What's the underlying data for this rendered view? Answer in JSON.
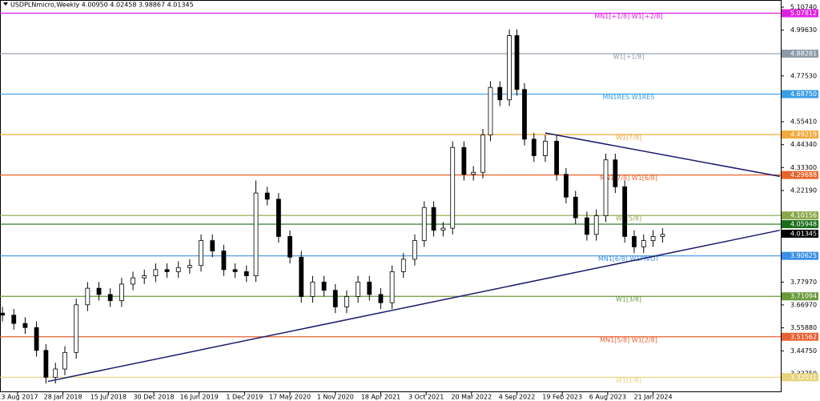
{
  "chart_data": {
    "type": "candlestick",
    "title": "USDPLNmicro,Weekly  4.00950 4.02458 3.98867 4.01345",
    "x": [
      -8,
      -2,
      4,
      10,
      15,
      20,
      25,
      31,
      37,
      43,
      49,
      55,
      61,
      67,
      73,
      79,
      85,
      91,
      97,
      103,
      109,
      115,
      121,
      126,
      132,
      138,
      144,
      150,
      156,
      162,
      168,
      174,
      180,
      186,
      192,
      198,
      204,
      210,
      215,
      220,
      225,
      230,
      236,
      241,
      246,
      250,
      255,
      260,
      264,
      268,
      273,
      279,
      285,
      290,
      295,
      301,
      306,
      311,
      316,
      321,
      326,
      331,
      336,
      341
    ],
    "open": [
      3.63,
      3.62,
      3.58,
      3.56,
      3.45,
      3.32,
      3.36,
      3.44,
      3.67,
      3.75,
      3.72,
      3.69,
      3.77,
      3.8,
      3.81,
      3.84,
      3.83,
      3.85,
      3.86,
      3.98,
      3.93,
      3.84,
      3.83,
      3.81,
      4.21,
      4.18,
      4.0,
      3.9,
      3.71,
      3.78,
      3.74,
      3.66,
      3.71,
      3.78,
      3.72,
      3.68,
      3.83,
      3.89,
      3.98,
      4.14,
      4.03,
      4.04,
      4.43,
      4.3,
      4.31,
      4.49,
      4.72,
      4.66,
      4.97,
      4.71,
      4.47,
      4.39,
      4.46,
      4.3,
      4.19,
      4.09,
      4.01,
      4.1,
      4.37,
      4.24,
      4.0,
      3.95,
      3.98,
      4.0
    ],
    "high": [
      3.66,
      3.65,
      3.61,
      3.59,
      3.48,
      3.39,
      3.47,
      3.7,
      3.78,
      3.78,
      3.75,
      3.8,
      3.83,
      3.84,
      3.87,
      3.87,
      3.88,
      3.89,
      4.01,
      4.01,
      3.96,
      3.87,
      3.86,
      4.27,
      4.24,
      4.21,
      4.03,
      3.93,
      3.81,
      3.81,
      3.77,
      3.74,
      3.81,
      3.81,
      3.75,
      3.86,
      3.92,
      4.01,
      4.17,
      4.17,
      4.07,
      4.46,
      4.46,
      4.34,
      4.52,
      4.75,
      4.75,
      5.0,
      5.0,
      4.74,
      4.5,
      4.49,
      4.49,
      4.33,
      4.22,
      4.12,
      4.13,
      4.4,
      4.4,
      4.27,
      4.03,
      4.01,
      4.03,
      4.04
    ],
    "low": [
      3.59,
      3.55,
      3.53,
      3.42,
      3.29,
      3.29,
      3.33,
      3.41,
      3.64,
      3.69,
      3.66,
      3.66,
      3.74,
      3.77,
      3.78,
      3.8,
      3.8,
      3.82,
      3.83,
      3.9,
      3.81,
      3.8,
      3.78,
      3.78,
      4.15,
      3.97,
      3.87,
      3.68,
      3.68,
      3.71,
      3.63,
      3.63,
      3.68,
      3.69,
      3.65,
      3.65,
      3.8,
      3.86,
      3.95,
      4.0,
      4.0,
      4.01,
      4.27,
      4.27,
      4.28,
      4.46,
      4.63,
      4.63,
      4.68,
      4.44,
      4.36,
      4.36,
      4.27,
      4.16,
      4.06,
      3.98,
      3.98,
      4.07,
      4.21,
      3.97,
      3.92,
      3.92,
      3.95,
      3.97
    ],
    "close": [
      3.62,
      3.58,
      3.56,
      3.45,
      3.32,
      3.36,
      3.44,
      3.67,
      3.75,
      3.72,
      3.69,
      3.77,
      3.8,
      3.81,
      3.84,
      3.83,
      3.85,
      3.86,
      3.98,
      3.93,
      3.84,
      3.83,
      3.81,
      4.21,
      4.18,
      4.0,
      3.9,
      3.71,
      3.78,
      3.74,
      3.66,
      3.71,
      3.78,
      3.72,
      3.68,
      3.83,
      3.89,
      3.98,
      4.14,
      4.03,
      4.04,
      4.43,
      4.3,
      4.31,
      4.49,
      4.72,
      4.66,
      4.97,
      4.71,
      4.47,
      4.39,
      4.46,
      4.3,
      4.19,
      4.09,
      4.01,
      4.1,
      4.37,
      4.24,
      4.0,
      3.95,
      3.98,
      4.0,
      4.01
    ],
    "xlim": [
      -9.3,
      403.5
    ],
    "ylim": [
      3.248,
      5.142
    ],
    "xticks": [
      {
        "value": 0,
        "label": "13 Aug 2017"
      },
      {
        "value": 24,
        "label": "28 Jan 2018"
      },
      {
        "value": 48,
        "label": "15 Jul 2018"
      },
      {
        "value": 72,
        "label": "30 Dec 2018"
      },
      {
        "value": 96,
        "label": "16 Jun 2019"
      },
      {
        "value": 120,
        "label": "1 Dec 2019"
      },
      {
        "value": 144,
        "label": "17 May 2020"
      },
      {
        "value": 168,
        "label": "1 Nov 2020"
      },
      {
        "value": 192,
        "label": "18 Apr 2021"
      },
      {
        "value": 216,
        "label": "3 Oct 2021"
      },
      {
        "value": 240,
        "label": "20 Mar 2022"
      },
      {
        "value": 264,
        "label": "4 Sep 2022"
      },
      {
        "value": 288,
        "label": "19 Feb 2023"
      },
      {
        "value": 312,
        "label": "6 Aug 2023"
      },
      {
        "value": 336,
        "label": "21 Jan 2024"
      }
    ],
    "yticks": [
      {
        "value": 5.1074,
        "label": "5.10740"
      },
      {
        "value": 4.9963,
        "label": "4.99630"
      },
      {
        "value": 4.7753,
        "label": "4.77530"
      },
      {
        "value": 4.5541,
        "label": "4.55410"
      },
      {
        "value": 4.4434,
        "label": "4.44340"
      },
      {
        "value": 4.333,
        "label": "4.33300"
      },
      {
        "value": 4.2219,
        "label": "4.22190"
      },
      {
        "value": 3.7797,
        "label": "3.77970"
      },
      {
        "value": 3.6697,
        "label": "3.66970"
      },
      {
        "value": 3.5588,
        "label": "3.55880"
      },
      {
        "value": 3.4475,
        "label": "3.44750"
      },
      {
        "value": 3.3375,
        "label": "3.33750"
      }
    ],
    "levels": [
      {
        "label": "MN1[+1/8] W1[+2/8]",
        "price": 5.07812,
        "tag": "5.07812",
        "color": "#e020e0"
      },
      {
        "label": "W1[+1/8]",
        "price": 4.88281,
        "tag": "4.88281",
        "color": "#8c9aa8"
      },
      {
        "label": "MN1RES W1RES",
        "price": 4.6875,
        "tag": "4.68750",
        "color": "#3a9ee8"
      },
      {
        "label": "W1[7/8]",
        "price": 4.49219,
        "tag": "4.49219",
        "color": "#f2a93b"
      },
      {
        "label": "MN1[7/8] W1[6/8]",
        "price": 4.29688,
        "tag": "4.29688",
        "color": "#e8652c"
      },
      {
        "label": "W1[5/8]",
        "price": 4.10156,
        "tag": "4.10156",
        "color": "#8aa84a"
      },
      {
        "price": 4.05948,
        "tag": "4.05948",
        "color": "#1a6e1a"
      },
      {
        "label": "MN1[6/8] W1PIVOT",
        "price": 3.90625,
        "tag": "3.90625",
        "color": "#3a8ee6"
      },
      {
        "label": "W1[3/8]",
        "price": 3.71094,
        "tag": "3.71094",
        "color": "#6a9a3a"
      },
      {
        "label": "MN1[5/8] W1[2/8]",
        "price": 3.51562,
        "tag": "3.51562",
        "color": "#e86030"
      },
      {
        "label": "W1[1/8]",
        "price": 3.32031,
        "tag": "3.32031",
        "color": "#e8d27a"
      }
    ],
    "trendlines": [
      {
        "x": [
          16,
          403
        ],
        "y": [
          3.3,
          4.03
        ],
        "color": "#1a1a6e"
      },
      {
        "x": [
          279,
          403
        ],
        "y": [
          4.5,
          4.29
        ],
        "color": "#1a1a6e"
      }
    ],
    "last_price": 4.01345
  }
}
